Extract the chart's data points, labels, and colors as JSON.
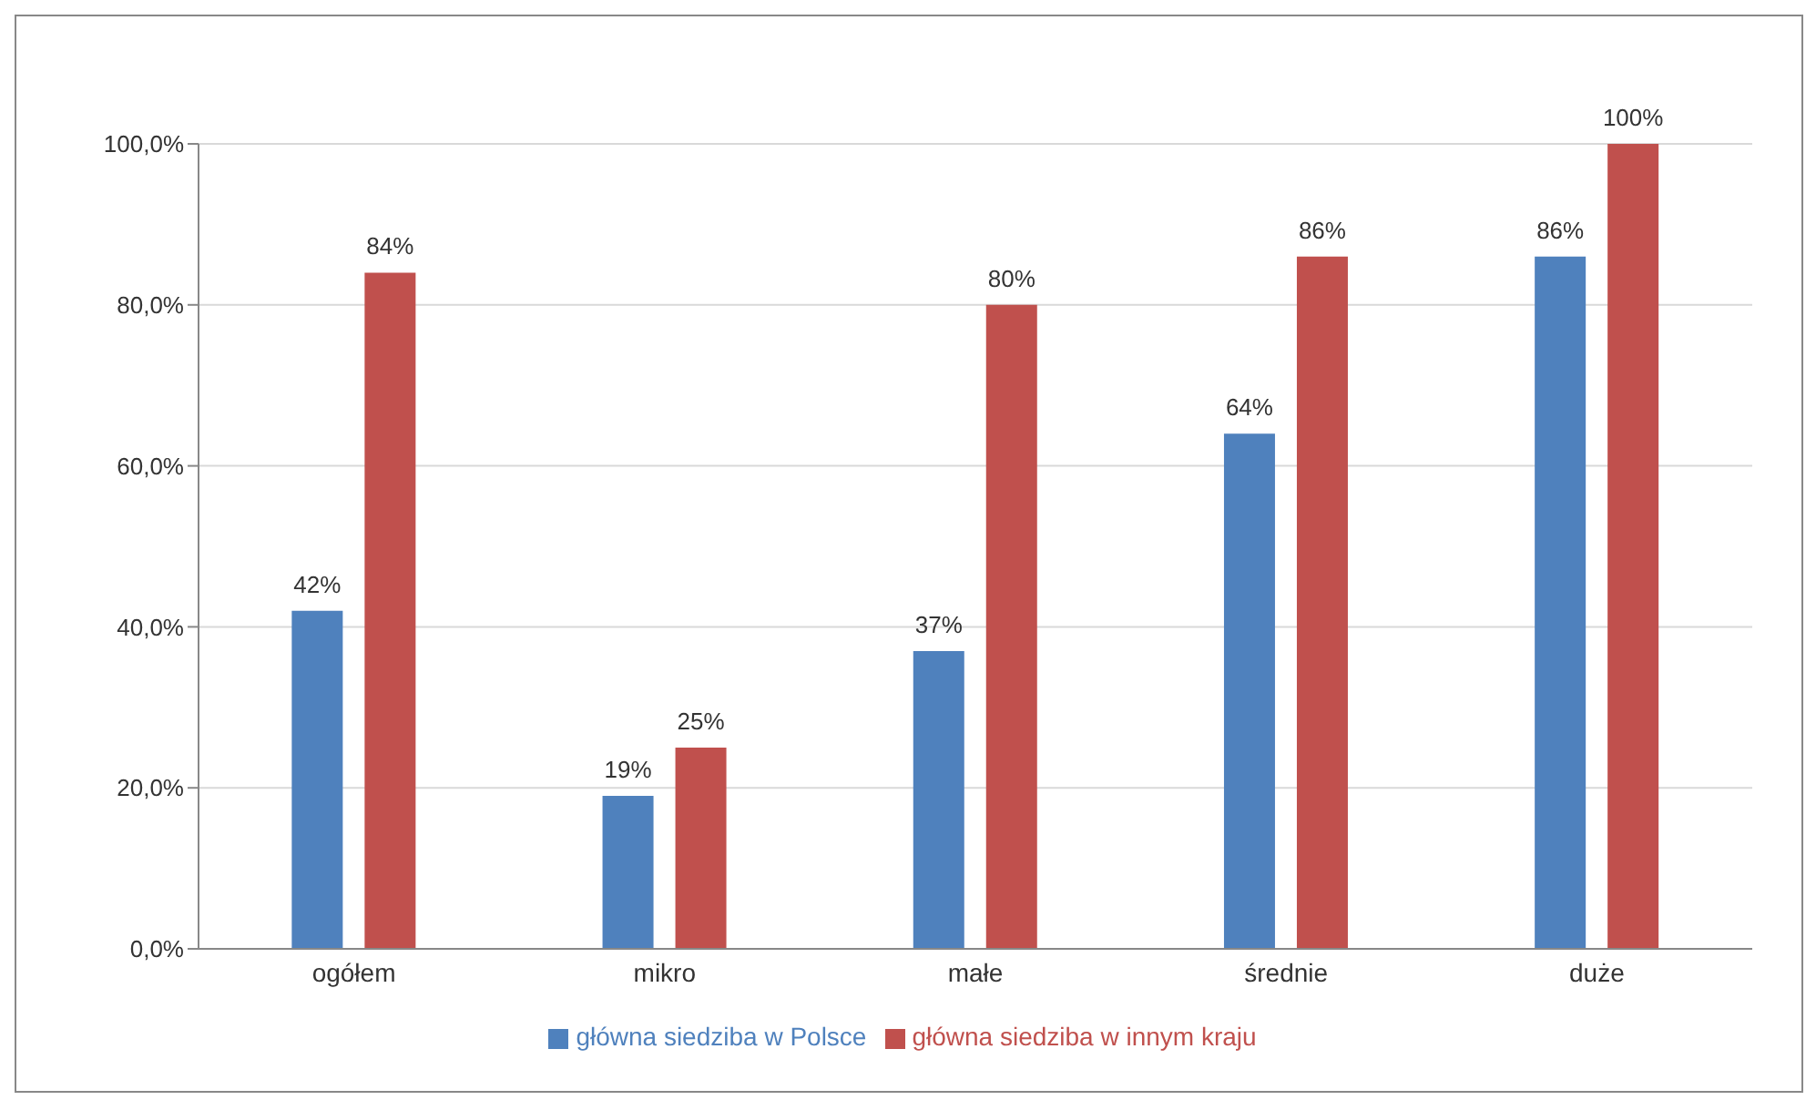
{
  "chart_data": {
    "type": "bar",
    "categories": [
      "ogółem",
      "mikro",
      "małe",
      "średnie",
      "duże"
    ],
    "series": [
      {
        "name": "główna siedziba w Polsce",
        "color": "#4f81bd",
        "values": [
          42,
          19,
          37,
          64,
          86
        ],
        "value_labels": [
          "42%",
          "19%",
          "37%",
          "64%",
          "86%"
        ]
      },
      {
        "name": "główna siedziba w innym kraju",
        "color": "#c0504d",
        "values": [
          84,
          25,
          80,
          86,
          100
        ],
        "value_labels": [
          "84%",
          "25%",
          "80%",
          "86%",
          "100%"
        ]
      }
    ],
    "ylim": [
      0,
      100
    ],
    "yticks": [
      {
        "value": 0,
        "label": "0,0%"
      },
      {
        "value": 20,
        "label": "20,0%"
      },
      {
        "value": 40,
        "label": "40,0%"
      },
      {
        "value": 60,
        "label": "60,0%"
      },
      {
        "value": 80,
        "label": "80,0%"
      },
      {
        "value": 100,
        "label": "100,0%"
      }
    ],
    "grid": "y",
    "legend": "bottom"
  }
}
